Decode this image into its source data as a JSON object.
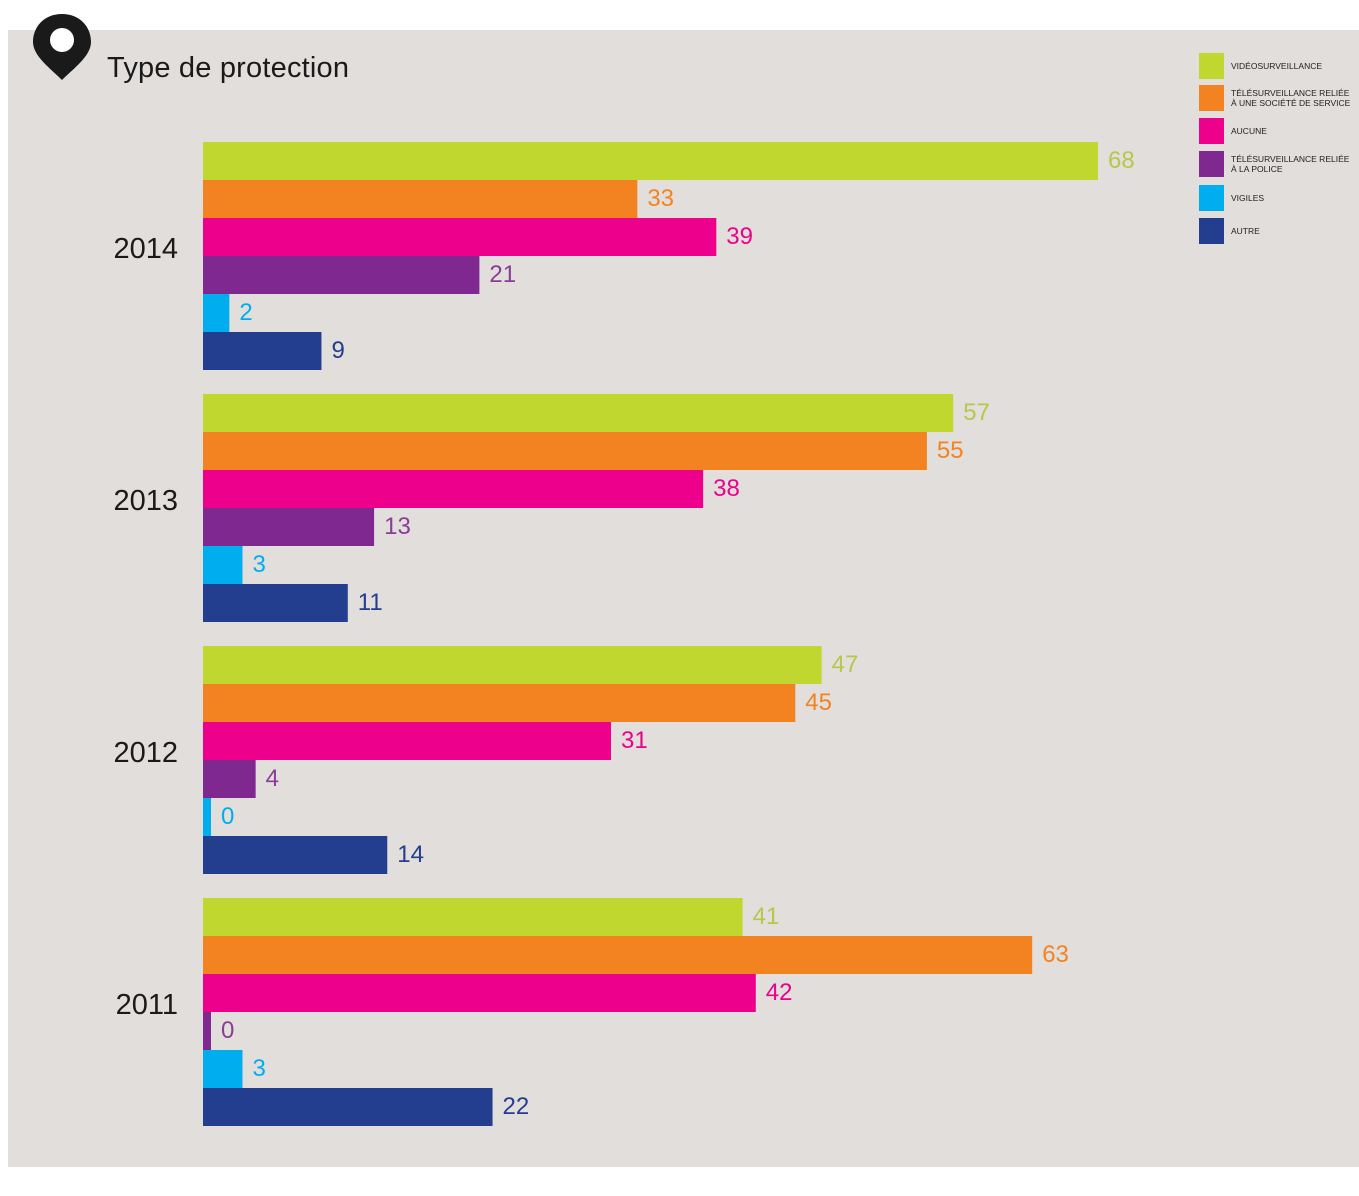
{
  "chart_data": {
    "type": "bar",
    "orientation": "horizontal",
    "title": "Type de protection",
    "categories": [
      "2014",
      "2013",
      "2012",
      "2011"
    ],
    "series": [
      {
        "name": "VIDÉOSURVEILLANCE",
        "color": "#bfd72f",
        "values": [
          68,
          57,
          47,
          41
        ]
      },
      {
        "name": "TÉLÉSURVEILLANCE RELIÉE À UNE SOCIÉTÉ DE SERVICE",
        "color": "#f38321",
        "values": [
          33,
          55,
          45,
          63
        ]
      },
      {
        "name": "AUCUNE",
        "color": "#ec008c",
        "values": [
          39,
          38,
          31,
          42
        ]
      },
      {
        "name": "TÉLÉSURVEILLANCE RELIÉE À LA POLICE",
        "color": "#7f288f",
        "values": [
          21,
          13,
          4,
          0
        ]
      },
      {
        "name": "VIGILES",
        "color": "#00aeef",
        "values": [
          2,
          3,
          0,
          3
        ]
      },
      {
        "name": "AUTRE",
        "color": "#233d8f",
        "values": [
          9,
          11,
          14,
          22
        ]
      }
    ],
    "xlim": [
      0,
      68
    ],
    "grid": false,
    "legend_position": "top-right",
    "value_label_colors": [
      "#b5c84a",
      "#f38321",
      "#ec008c",
      "#8a3d97",
      "#00aeef",
      "#233d8f"
    ]
  },
  "icons": {
    "title": "map-pin-icon"
  }
}
